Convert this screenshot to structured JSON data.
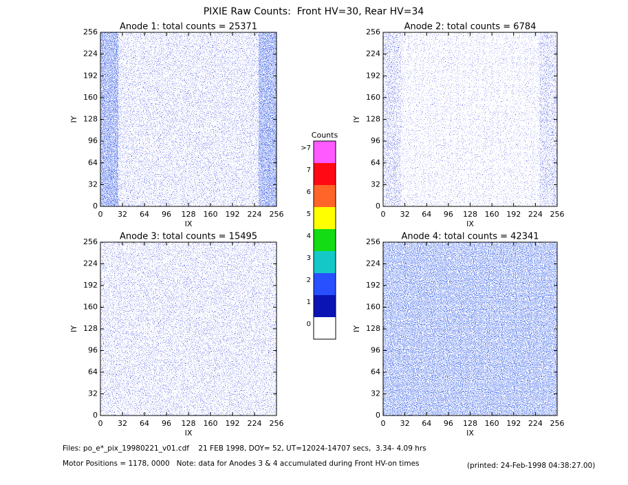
{
  "header": {
    "title": "PIXIE Raw Counts:  Front HV=30, Rear HV=34"
  },
  "chart_data": [
    {
      "type": "heatmap",
      "title": "Anode 1: total counts = 25371",
      "xlabel": "IX",
      "ylabel": "IY",
      "xlim": [
        0,
        256
      ],
      "ylim": [
        0,
        256
      ],
      "xticks": [
        0,
        32,
        64,
        96,
        128,
        160,
        192,
        224,
        256
      ],
      "yticks": [
        0,
        32,
        64,
        96,
        128,
        160,
        192,
        224,
        256
      ]
    },
    {
      "type": "heatmap",
      "title": "Anode 2: total counts = 6784",
      "xlabel": "IX",
      "ylabel": "IY",
      "xlim": [
        0,
        256
      ],
      "ylim": [
        0,
        256
      ],
      "xticks": [
        0,
        32,
        64,
        96,
        128,
        160,
        192,
        224,
        256
      ],
      "yticks": [
        0,
        32,
        64,
        96,
        128,
        160,
        192,
        224,
        256
      ]
    },
    {
      "type": "heatmap",
      "title": "Anode 3: total counts = 15495",
      "xlabel": "IX",
      "ylabel": "IY",
      "xlim": [
        0,
        256
      ],
      "ylim": [
        0,
        256
      ],
      "xticks": [
        0,
        32,
        64,
        96,
        128,
        160,
        192,
        224,
        256
      ],
      "yticks": [
        0,
        32,
        64,
        96,
        128,
        160,
        192,
        224,
        256
      ]
    },
    {
      "type": "heatmap",
      "title": "Anode 4: total counts = 42341",
      "xlabel": "IX",
      "ylabel": "IY",
      "xlim": [
        0,
        256
      ],
      "ylim": [
        0,
        256
      ],
      "xticks": [
        0,
        32,
        64,
        96,
        128,
        160,
        192,
        224,
        256
      ],
      "yticks": [
        0,
        32,
        64,
        96,
        128,
        160,
        192,
        224,
        256
      ]
    }
  ],
  "colorbar": {
    "title": "Counts",
    "levels": [
      {
        "label": "0",
        "color": "#ffffff"
      },
      {
        "label": "1",
        "color": "#0a14b4"
      },
      {
        "label": "2",
        "color": "#2850ff"
      },
      {
        "label": "3",
        "color": "#14c8c8"
      },
      {
        "label": "4",
        "color": "#14dc14"
      },
      {
        "label": "5",
        "color": "#ffff00"
      },
      {
        "label": "6",
        "color": "#ff6428"
      },
      {
        "label": "7",
        "color": "#ff0a14"
      },
      {
        "label": ">7",
        "color": "#ff5aff"
      }
    ]
  },
  "footer": {
    "files": "Files: po_e*_pix_19980221_v01.cdf    21 FEB 1998, DOY= 52, UT=12024-14707 secs,  3.34- 4.09 hrs",
    "note": "Motor Positions = 1178, 0000   Note: data for Anodes 3 & 4 accumulated during Front HV-on times",
    "printed": "(printed: 24-Feb-1998 04:38:27.00)"
  }
}
